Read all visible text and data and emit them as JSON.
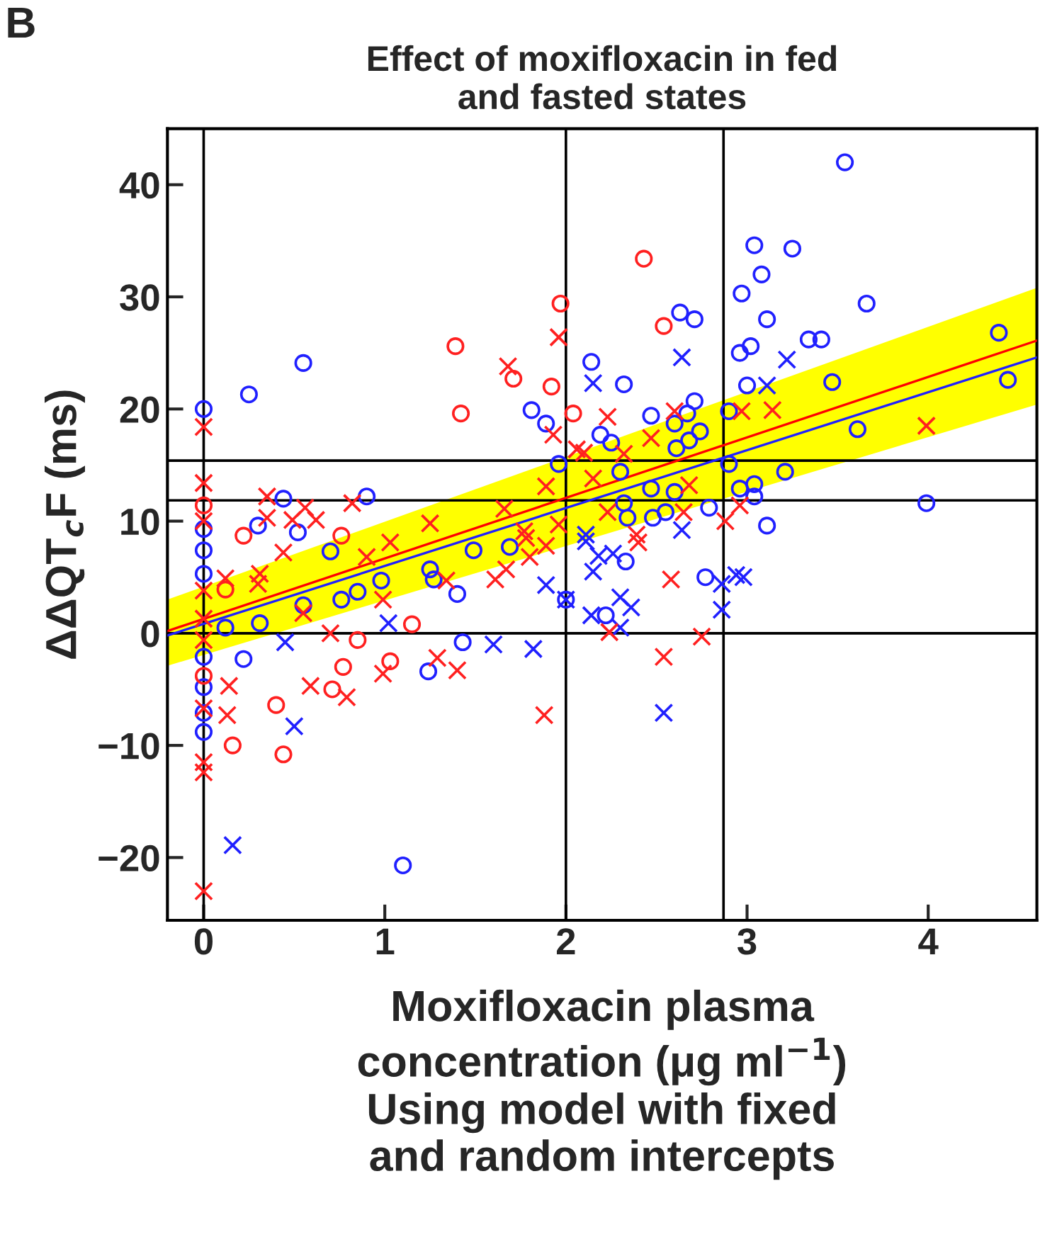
{
  "chart_data": {
    "type": "scatter",
    "title": "Effect of moxifloxacin in fed\nand fasted states",
    "xlabel": "Moxifloxacin plasma\nconcentration (μg ml$^{−1}$)\nUsing model with fixed\nand random intercepts",
    "ylabel": "ΔΔQT$_{c}$F (ms)",
    "annotations": [
      "B"
    ],
    "xlim": [
      -0.2,
      4.6
    ],
    "ylim": [
      -25.6,
      45
    ],
    "xticks": [
      0,
      1,
      2,
      3,
      4
    ],
    "yticks": [
      {
        "value": -20,
        "label": "−20"
      },
      {
        "value": -10,
        "label": "−10"
      },
      0,
      10,
      20,
      30,
      40
    ],
    "grid": false,
    "legend": false,
    "ref_lines": [
      {
        "axis": "x",
        "value": 0,
        "color": "#000000"
      },
      {
        "axis": "x",
        "value": 2,
        "color": "#000000"
      },
      {
        "axis": "x",
        "value": 2.87,
        "color": "#000000"
      },
      {
        "axis": "y",
        "value": 0,
        "color": "#000000"
      },
      {
        "axis": "y",
        "value": 11.85,
        "color": "#000000"
      },
      {
        "axis": "y",
        "value": 15.4,
        "color": "#000000"
      }
    ],
    "series": [
      {
        "type": "line",
        "color": "#ff0000",
        "colors": [
          "#ffff00",
          "#ffff00"
        ],
        "marker": "none",
        "x": [
          -0.2,
          4.6
        ],
        "values": [
          0.2,
          26.1
        ],
        "lower": [
          -2.9,
          20.4
        ],
        "upper": [
          3.0,
          30.8
        ]
      },
      {
        "type": "line",
        "color": "#2020ff",
        "marker": "none",
        "x": [
          -0.2,
          4.6
        ],
        "values": [
          -0.2,
          24.6
        ]
      },
      {
        "color": "#2020ff",
        "marker": "circle",
        "x": [
          0,
          0.25,
          0.55,
          0,
          0.44,
          0.3,
          0.9,
          0.52,
          0.7,
          0,
          0,
          1.25,
          1.27,
          0.98,
          0.85,
          0.76,
          0.55,
          0.12,
          0.31,
          0,
          0.22,
          1.24,
          0,
          0,
          0,
          1.1,
          2.14,
          2.32,
          2.63,
          2.71,
          1.81,
          1.89,
          2.19,
          2.25,
          2.47,
          2.67,
          2.71,
          2.6,
          2.74,
          2.68,
          2.61,
          1.96,
          2.3,
          2.47,
          2.6,
          2.9,
          2.9,
          2.32,
          2.34,
          2.48,
          2.55,
          2.79,
          3.54,
          3.04,
          3.25,
          3.08,
          2.97,
          3.66,
          3.11,
          3.34,
          3.41,
          4.39,
          3.02,
          2.96,
          3.47,
          4.44,
          3.0,
          3.61,
          3.21,
          2.96,
          3.04,
          3.04,
          3.99,
          3.11,
          1.49,
          1.69,
          1.4,
          2.0,
          2.33,
          2.77,
          2.22,
          1.43
        ],
        "values": [
          20,
          21.3,
          24.1,
          9.3,
          12.0,
          9.6,
          12.2,
          9.0,
          7.3,
          7.4,
          5.3,
          5.7,
          4.8,
          4.7,
          3.7,
          3.0,
          2.5,
          0.5,
          0.9,
          -2.1,
          -2.3,
          -3.4,
          -4.8,
          -7.1,
          -8.8,
          -20.7,
          24.2,
          22.2,
          28.6,
          28.0,
          19.9,
          18.7,
          17.7,
          17.0,
          19.4,
          19.6,
          20.7,
          18.7,
          18.0,
          17.2,
          16.5,
          15.1,
          14.4,
          12.9,
          12.6,
          15.1,
          19.8,
          11.6,
          10.3,
          10.3,
          10.8,
          11.2,
          42.0,
          34.6,
          34.3,
          32.0,
          30.3,
          29.4,
          28.0,
          26.2,
          26.2,
          26.8,
          25.6,
          25.0,
          22.4,
          22.6,
          22.1,
          18.2,
          14.4,
          12.9,
          13.3,
          12.2,
          11.6,
          9.6,
          7.4,
          7.7,
          3.5,
          3.0,
          6.4,
          5.0,
          1.6,
          -0.8
        ]
      },
      {
        "color": "#2020ff",
        "marker": "cross",
        "x": [
          1.02,
          0.45,
          0.5,
          0.16,
          2.15,
          2.64,
          2.11,
          2.64,
          3.22,
          3.11,
          1.89,
          2.0,
          2.11,
          2.18,
          2.15,
          2.26,
          2.86,
          2.94,
          2.86,
          2.3,
          2.36,
          2.14,
          2.3,
          1.6,
          1.82,
          2.54,
          2.98
        ],
        "values": [
          0.9,
          -0.8,
          -8.3,
          -18.9,
          22.3,
          24.6,
          8.8,
          9.2,
          24.4,
          22.1,
          4.3,
          3.0,
          8.2,
          6.9,
          5.5,
          7.1,
          4.4,
          5.2,
          2.1,
          3.2,
          2.3,
          1.6,
          0.5,
          -1.0,
          -1.4,
          -7.1,
          5.0
        ]
      },
      {
        "color": "#ff2020",
        "marker": "circle",
        "x": [
          1.39,
          1.42,
          0,
          0.22,
          0.76,
          0.12,
          1.15,
          0.85,
          0.77,
          1.03,
          0,
          0.71,
          0.4,
          0.16,
          0.44,
          1.97,
          2.43,
          1.71,
          1.92,
          2.04,
          2.54
        ],
        "values": [
          25.6,
          19.6,
          11.4,
          8.7,
          8.7,
          3.9,
          0.8,
          -0.6,
          -3.0,
          -2.5,
          -3.8,
          -5.0,
          -6.4,
          -10.0,
          -10.8,
          29.4,
          33.4,
          22.7,
          22.0,
          19.6,
          27.4
        ]
      },
      {
        "color": "#ff2020",
        "marker": "cross",
        "x": [
          0,
          0,
          0,
          0.35,
          0.35,
          0.49,
          0.56,
          0.62,
          0.82,
          1.25,
          0.44,
          0.9,
          1.03,
          0,
          0.12,
          0.31,
          0.3,
          1.34,
          0.99,
          0.55,
          0,
          0,
          0.7,
          1.29,
          1.4,
          0.99,
          0.14,
          0.59,
          0.79,
          0,
          0.13,
          0,
          0,
          0,
          1.96,
          1.68,
          2.23,
          1.93,
          2.06,
          2.1,
          2.6,
          2.47,
          2.32,
          1.89,
          2.15,
          2.68,
          1.66,
          2.23,
          2.65,
          2.88,
          1.77,
          1.96,
          2.39,
          2.97,
          3.14,
          3.99,
          2.96,
          1.78,
          1.89,
          1.8,
          1.67,
          1.61,
          2.4,
          2.58,
          2.24,
          2.75,
          2.54,
          1.88
        ],
        "values": [
          18.4,
          13.4,
          10.0,
          12.2,
          10.3,
          10.1,
          11.2,
          10.1,
          11.6,
          9.8,
          7.2,
          6.8,
          8.1,
          3.8,
          4.9,
          5.3,
          4.4,
          4.7,
          3.0,
          1.8,
          1.3,
          -0.6,
          0,
          -2.2,
          -3.3,
          -3.6,
          -4.7,
          -4.7,
          -5.7,
          -6.7,
          -7.3,
          -11.5,
          -12.4,
          -23.0,
          26.4,
          23.8,
          19.3,
          17.7,
          16.4,
          16.1,
          19.8,
          17.4,
          16.0,
          13.1,
          13.8,
          13.2,
          11.1,
          10.8,
          10.8,
          10.0,
          9.1,
          9.7,
          8.8,
          19.8,
          19.9,
          18.5,
          11.4,
          8.5,
          7.8,
          6.8,
          5.7,
          4.8,
          8.1,
          4.8,
          0.1,
          -0.3,
          -2.1,
          -7.3
        ]
      }
    ]
  }
}
